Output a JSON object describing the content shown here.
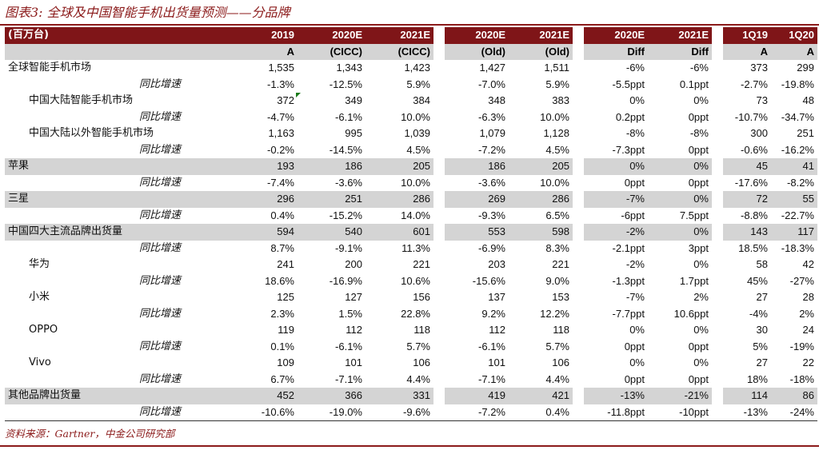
{
  "title": "图表3: 全球及中国智能手机出货量预测——分品牌",
  "header": {
    "unit_label": "(百万台)",
    "top": [
      "2019",
      "2020E",
      "2021E",
      "2020E",
      "2021E",
      "2020E",
      "2021E",
      "1Q19",
      "1Q20"
    ],
    "sub": [
      "A",
      "(CICC)",
      "(CICC)",
      "(Old)",
      "(Old)",
      "Diff",
      "Diff",
      "A",
      "A"
    ]
  },
  "rows": [
    {
      "label": "全球智能手机市场",
      "level": 0,
      "shaded": false,
      "values": [
        "1,535",
        "1,343",
        "1,423",
        "1,427",
        "1,511",
        "-6%",
        "-6%",
        "373",
        "299"
      ]
    },
    {
      "label": "同比增速",
      "level": 2,
      "shaded": false,
      "values": [
        "-1.3%",
        "-12.5%",
        "5.9%",
        "-7.0%",
        "5.9%",
        "-5.5ppt",
        "0.1ppt",
        "-2.7%",
        "-19.8%"
      ]
    },
    {
      "label": "中国大陆智能手机市场",
      "level": 1,
      "shaded": false,
      "values": [
        "372",
        "349",
        "384",
        "348",
        "383",
        "0%",
        "0%",
        "73",
        "48"
      ]
    },
    {
      "label": "同比增速",
      "level": 2,
      "shaded": false,
      "values": [
        "-4.7%",
        "-6.1%",
        "10.0%",
        "-6.3%",
        "10.0%",
        "0.2ppt",
        "0ppt",
        "-10.7%",
        "-34.7%"
      ]
    },
    {
      "label": "中国大陆以外智能手机市场",
      "level": 1,
      "shaded": false,
      "values": [
        "1,163",
        "995",
        "1,039",
        "1,079",
        "1,128",
        "-8%",
        "-8%",
        "300",
        "251"
      ]
    },
    {
      "label": "同比增速",
      "level": 2,
      "shaded": false,
      "values": [
        "-0.2%",
        "-14.5%",
        "4.5%",
        "-7.2%",
        "4.5%",
        "-7.3ppt",
        "0ppt",
        "-0.6%",
        "-16.2%"
      ]
    },
    {
      "label": "苹果",
      "level": 0,
      "shaded": true,
      "values": [
        "193",
        "186",
        "205",
        "186",
        "205",
        "0%",
        "0%",
        "45",
        "41"
      ]
    },
    {
      "label": "同比增速",
      "level": 2,
      "shaded": false,
      "values": [
        "-7.4%",
        "-3.6%",
        "10.0%",
        "-3.6%",
        "10.0%",
        "0ppt",
        "0ppt",
        "-17.6%",
        "-8.2%"
      ]
    },
    {
      "label": "三星",
      "level": 0,
      "shaded": true,
      "values": [
        "296",
        "251",
        "286",
        "269",
        "286",
        "-7%",
        "0%",
        "72",
        "55"
      ]
    },
    {
      "label": "同比增速",
      "level": 2,
      "shaded": false,
      "values": [
        "0.4%",
        "-15.2%",
        "14.0%",
        "-9.3%",
        "6.5%",
        "-6ppt",
        "7.5ppt",
        "-8.8%",
        "-22.7%"
      ]
    },
    {
      "label": "中国四大主流品牌出货量",
      "level": 0,
      "shaded": true,
      "values": [
        "594",
        "540",
        "601",
        "553",
        "598",
        "-2%",
        "0%",
        "143",
        "117"
      ]
    },
    {
      "label": "同比增速",
      "level": 2,
      "shaded": false,
      "values": [
        "8.7%",
        "-9.1%",
        "11.3%",
        "-6.9%",
        "8.3%",
        "-2.1ppt",
        "3ppt",
        "18.5%",
        "-18.3%"
      ]
    },
    {
      "label": "华为",
      "level": 1,
      "shaded": false,
      "values": [
        "241",
        "200",
        "221",
        "203",
        "221",
        "-2%",
        "0%",
        "58",
        "42"
      ]
    },
    {
      "label": "同比增速",
      "level": 2,
      "shaded": false,
      "values": [
        "18.6%",
        "-16.9%",
        "10.6%",
        "-15.6%",
        "9.0%",
        "-1.3ppt",
        "1.7ppt",
        "45%",
        "-27%"
      ]
    },
    {
      "label": "小米",
      "level": 1,
      "shaded": false,
      "values": [
        "125",
        "127",
        "156",
        "137",
        "153",
        "-7%",
        "2%",
        "27",
        "28"
      ]
    },
    {
      "label": "同比增速",
      "level": 2,
      "shaded": false,
      "values": [
        "2.3%",
        "1.5%",
        "22.8%",
        "9.2%",
        "12.2%",
        "-7.7ppt",
        "10.6ppt",
        "-4%",
        "2%"
      ]
    },
    {
      "label": "OPPO",
      "level": 1,
      "shaded": false,
      "values": [
        "119",
        "112",
        "118",
        "112",
        "118",
        "0%",
        "0%",
        "30",
        "24"
      ]
    },
    {
      "label": "同比增速",
      "level": 2,
      "shaded": false,
      "values": [
        "0.1%",
        "-6.1%",
        "5.7%",
        "-6.1%",
        "5.7%",
        "0ppt",
        "0ppt",
        "5%",
        "-19%"
      ]
    },
    {
      "label": "Vivo",
      "level": 1,
      "shaded": false,
      "values": [
        "109",
        "101",
        "106",
        "101",
        "106",
        "0%",
        "0%",
        "27",
        "22"
      ]
    },
    {
      "label": "同比增速",
      "level": 2,
      "shaded": false,
      "values": [
        "6.7%",
        "-7.1%",
        "4.4%",
        "-7.1%",
        "4.4%",
        "0ppt",
        "0ppt",
        "18%",
        "-18%"
      ]
    },
    {
      "label": "其他品牌出货量",
      "level": 0,
      "shaded": true,
      "values": [
        "452",
        "366",
        "331",
        "419",
        "421",
        "-13%",
        "-21%",
        "114",
        "86"
      ]
    },
    {
      "label": "同比增速",
      "level": 2,
      "shaded": false,
      "values": [
        "-10.6%",
        "-19.0%",
        "-9.6%",
        "-7.2%",
        "0.4%",
        "-11.8ppt",
        "-10ppt",
        "-13%",
        "-24%"
      ]
    }
  ],
  "source": "资料来源：Gartner，中金公司研究部",
  "colors": {
    "accent": "#7f1518",
    "shade": "#d4d4d4",
    "title": "#8b1a1a"
  }
}
